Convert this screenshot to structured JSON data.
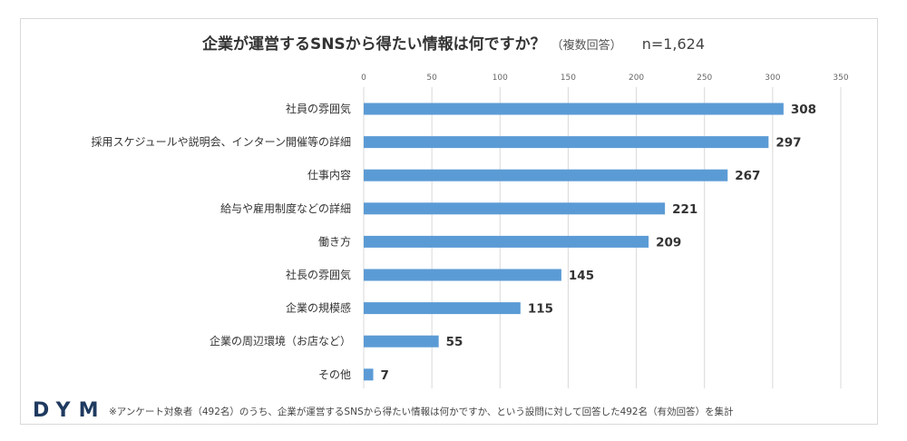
{
  "title": "企業が運営するSNSから得たい情報は何ですか？",
  "subtitle": "（複数回答）",
  "sample_size": "n=1,624",
  "logo": "DYM",
  "footnote": "※アンケート対象者（492名）のうち、企業が運営するSNSから得たい情報は何かですか、という設問に対して回答した492名（有効回答）を集計",
  "colors": {
    "bar": "#5b9bd5",
    "grid": "#d9d9d9",
    "text": "#333333"
  },
  "chart_data": {
    "type": "bar",
    "orientation": "horizontal",
    "categories": [
      "社員の雰囲気",
      "採用スケジュールや説明会、インターン開催等の詳細",
      "仕事内容",
      "給与や雇用制度などの詳細",
      "働き方",
      "社長の雰囲気",
      "企業の規模感",
      "企業の周辺環境（お店など）",
      "その他"
    ],
    "values": [
      308,
      297,
      267,
      221,
      209,
      145,
      115,
      55,
      7
    ],
    "xlim": [
      0,
      350
    ],
    "xticks": [
      0,
      50,
      100,
      150,
      200,
      250,
      300,
      350
    ],
    "axis_position": "top",
    "grid": true,
    "legend": "none",
    "data_labels": true
  }
}
